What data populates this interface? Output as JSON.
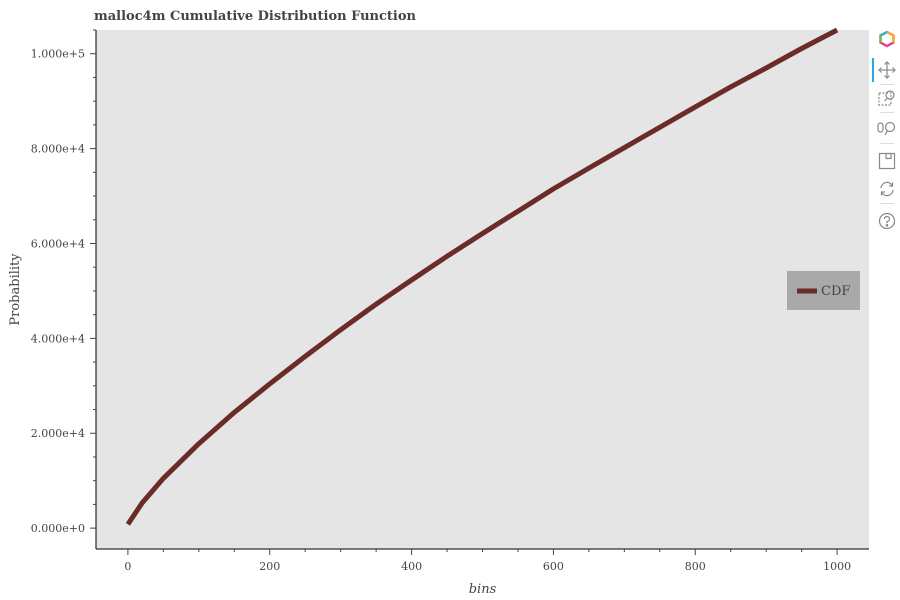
{
  "chart_data": {
    "type": "line",
    "title": "malloc4m Cumulative Distribution Function",
    "xlabel": "bins",
    "ylabel": "Probability",
    "xlim": [
      -45,
      1045
    ],
    "ylim": [
      -4400,
      105000
    ],
    "x_ticks": [
      0,
      200,
      400,
      600,
      800,
      1000
    ],
    "x_tick_labels": [
      "0",
      "200",
      "400",
      "600",
      "800",
      "1000"
    ],
    "y_ticks": [
      0,
      20000,
      40000,
      60000,
      80000,
      100000
    ],
    "y_tick_labels": [
      "0.000e+0",
      "2.000e+4",
      "4.000e+4",
      "6.000e+4",
      "8.000e+4",
      "1.000e+5"
    ],
    "grid": false,
    "legend_position": "right",
    "series": [
      {
        "name": "CDF",
        "color": "#6b2b26",
        "x": [
          0,
          20,
          50,
          100,
          150,
          200,
          250,
          300,
          350,
          400,
          450,
          500,
          550,
          600,
          650,
          700,
          750,
          800,
          850,
          900,
          950,
          1000
        ],
        "y": [
          800,
          5300,
          10500,
          17800,
          24400,
          30400,
          36200,
          41800,
          47200,
          52300,
          57300,
          62100,
          66800,
          71500,
          75900,
          80200,
          84500,
          88800,
          93000,
          97000,
          101100,
          105000
        ]
      }
    ]
  },
  "toolbar": {
    "tools": [
      "bokeh-logo-icon",
      "pan-icon",
      "box-zoom-icon",
      "wheel-zoom-icon",
      "save-icon",
      "reset-icon",
      "help-icon"
    ]
  },
  "colors": {
    "plot_background": "#e5e5e5",
    "line": "#6b2b26",
    "legend_background": "#a9a9a9",
    "toolbar_active": "#26aae1"
  }
}
